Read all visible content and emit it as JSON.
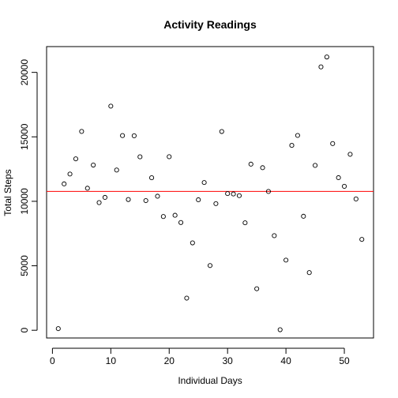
{
  "chart_data": {
    "type": "scatter",
    "title": "Activity Readings",
    "xlabel": "Individual Days",
    "ylabel": "Total Steps",
    "xlim": [
      -1,
      55
    ],
    "ylim": [
      -600,
      22000
    ],
    "x_ticks": [
      0,
      10,
      20,
      30,
      40,
      50
    ],
    "x_tick_labels": [
      "0",
      "10",
      "20",
      "30",
      "40",
      "50"
    ],
    "y_ticks": [
      0,
      5000,
      10000,
      15000,
      20000
    ],
    "y_tick_labels": [
      "0",
      "5000",
      "10000",
      "15000",
      "20000"
    ],
    "grid": false,
    "point_color": "#000000",
    "mean_line_color": "#ff0000",
    "mean_value": 10766,
    "x": [
      1,
      2,
      3,
      4,
      5,
      6,
      7,
      8,
      9,
      10,
      11,
      12,
      13,
      14,
      15,
      16,
      17,
      18,
      19,
      20,
      21,
      22,
      23,
      24,
      25,
      26,
      27,
      28,
      29,
      30,
      31,
      32,
      33,
      34,
      35,
      36,
      37,
      38,
      39,
      40,
      41,
      42,
      43,
      44,
      45,
      46,
      47,
      48,
      49,
      50,
      51,
      52,
      53
    ],
    "y": [
      126,
      11352,
      12116,
      13294,
      15420,
      11015,
      12811,
      9900,
      10304,
      17382,
      12426,
      15098,
      10139,
      15084,
      13452,
      10056,
      11829,
      10395,
      8821,
      13460,
      8918,
      8355,
      2492,
      6778,
      10119,
      11458,
      5018,
      9819,
      15414,
      10600,
      10571,
      10439,
      8334,
      12883,
      3219,
      12608,
      10765,
      7336,
      41,
      5441,
      14339,
      15110,
      8841,
      4472,
      12787,
      20427,
      21194,
      14478,
      11834,
      11162,
      13646,
      10183,
      7047
    ]
  }
}
